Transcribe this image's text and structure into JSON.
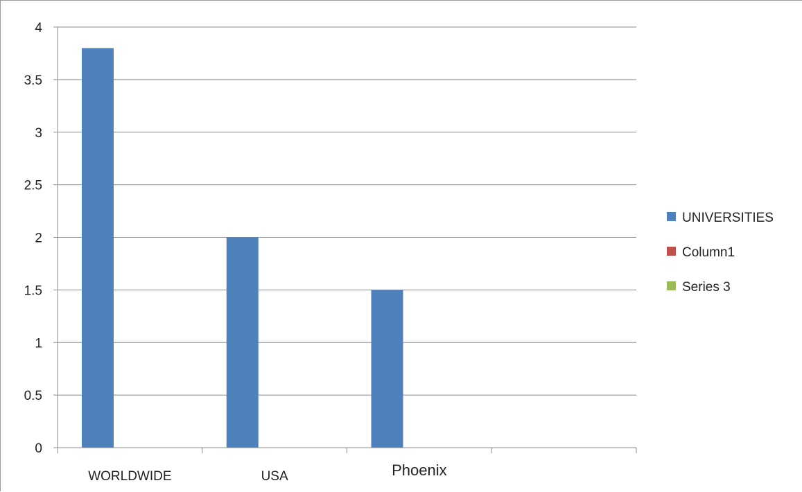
{
  "chart_data": {
    "type": "bar",
    "title": "",
    "xlabel": "",
    "ylabel": "",
    "categories": [
      "WORLDWIDE",
      "USA",
      "Phoenix",
      ""
    ],
    "series": [
      {
        "name": "UNIVERSITIES",
        "values": [
          3.8,
          2,
          1.5,
          null
        ],
        "color": "#4f81bd"
      },
      {
        "name": "Column1",
        "values": [
          null,
          null,
          null,
          null
        ],
        "color": "#c0504d"
      },
      {
        "name": "Series 3",
        "values": [
          null,
          null,
          null,
          null
        ],
        "color": "#9bbb59"
      }
    ],
    "ylim": [
      0,
      4
    ],
    "yticks": [
      "0",
      "0.5",
      "1",
      "1.5",
      "2",
      "2.5",
      "3",
      "3.5",
      "4"
    ],
    "grid": true,
    "legend_position": "right"
  }
}
